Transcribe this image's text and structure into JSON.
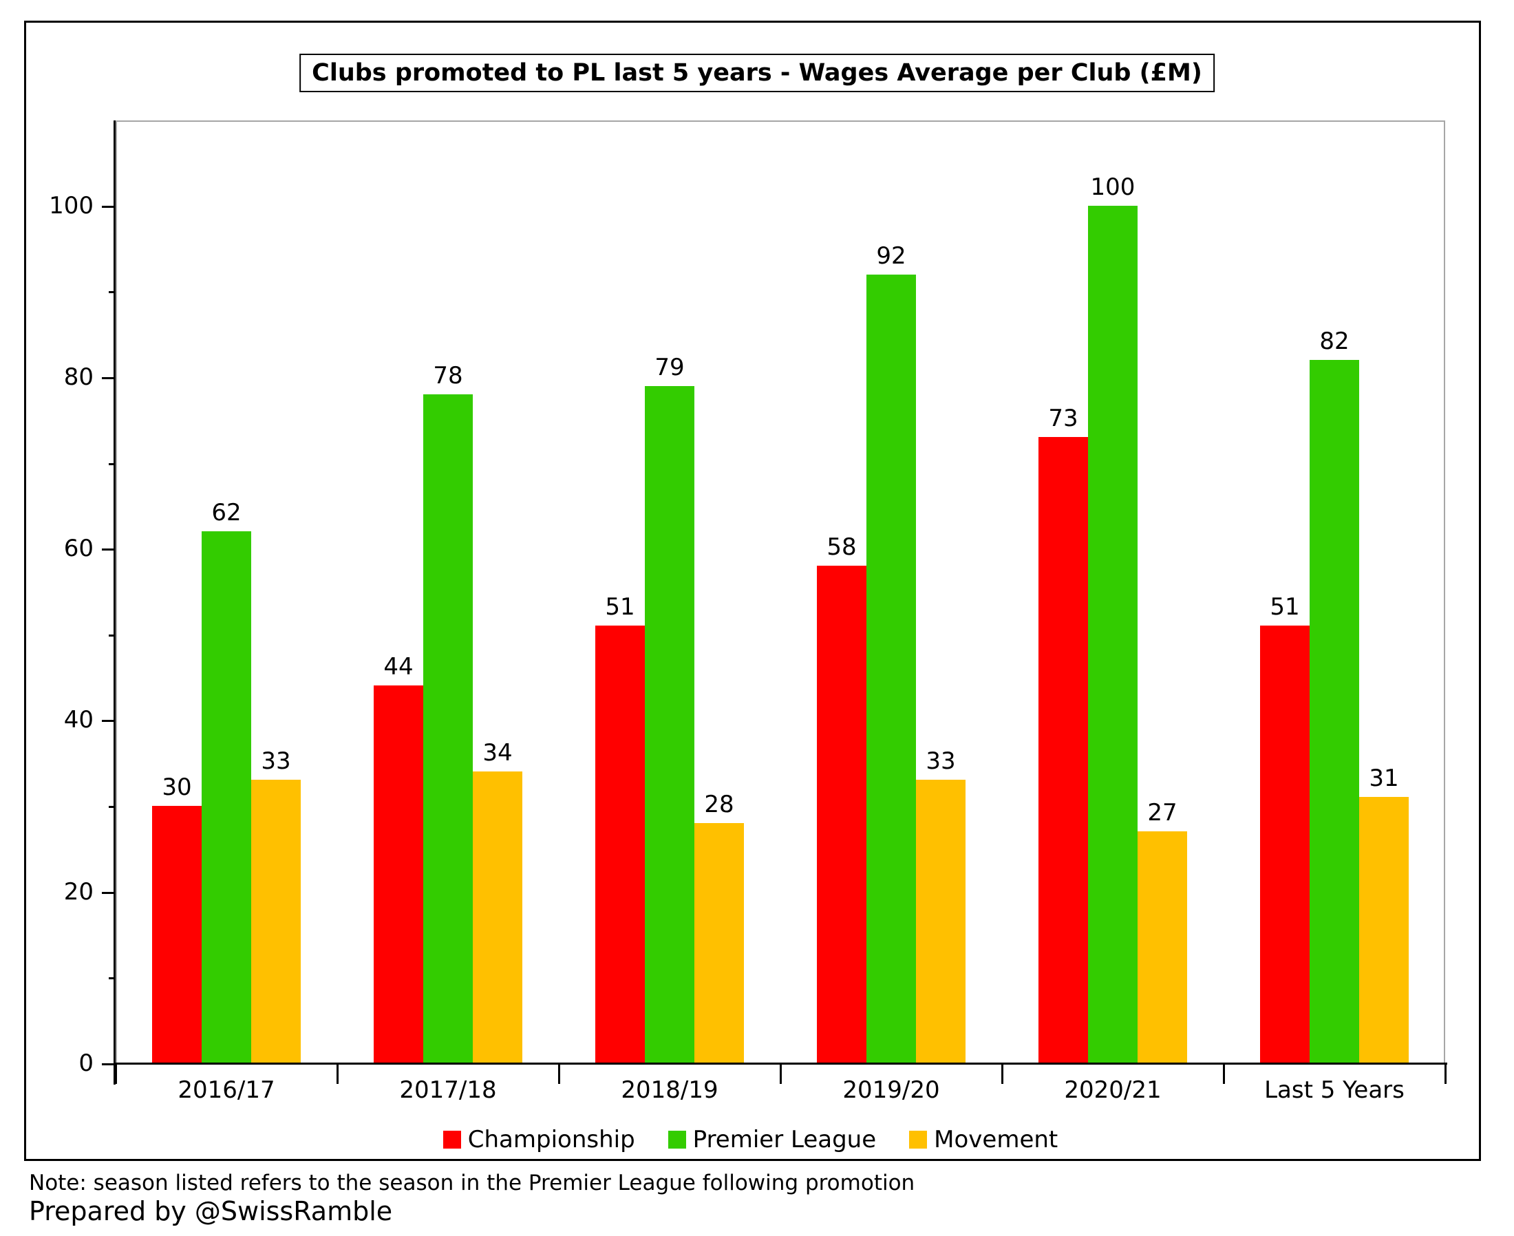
{
  "chart_data": {
    "type": "bar",
    "title": "Clubs promoted to PL last 5 years - Wages Average per Club (£M)",
    "categories": [
      "2016/17",
      "2017/18",
      "2018/19",
      "2019/20",
      "2020/21",
      "Last 5 Years"
    ],
    "series": [
      {
        "name": "Championship",
        "color": "#FF0000",
        "values": [
          30,
          44,
          51,
          58,
          73,
          51
        ]
      },
      {
        "name": "Premier League",
        "color": "#33CC00",
        "values": [
          62,
          78,
          79,
          92,
          100,
          82
        ]
      },
      {
        "name": "Movement",
        "color": "#FFC000",
        "values": [
          33,
          34,
          28,
          33,
          27,
          31
        ]
      }
    ],
    "ylim": [
      0,
      110
    ],
    "yticks": [
      0,
      20,
      40,
      60,
      80,
      100
    ],
    "minor_yticks": [
      10,
      30,
      50,
      70,
      90
    ],
    "grid": false,
    "legend_position": "bottom",
    "data_labels": true
  },
  "notes": {
    "note": "Note: season listed refers to the season in the Premier League following promotion",
    "prepared_by": "Prepared by @SwissRamble"
  }
}
